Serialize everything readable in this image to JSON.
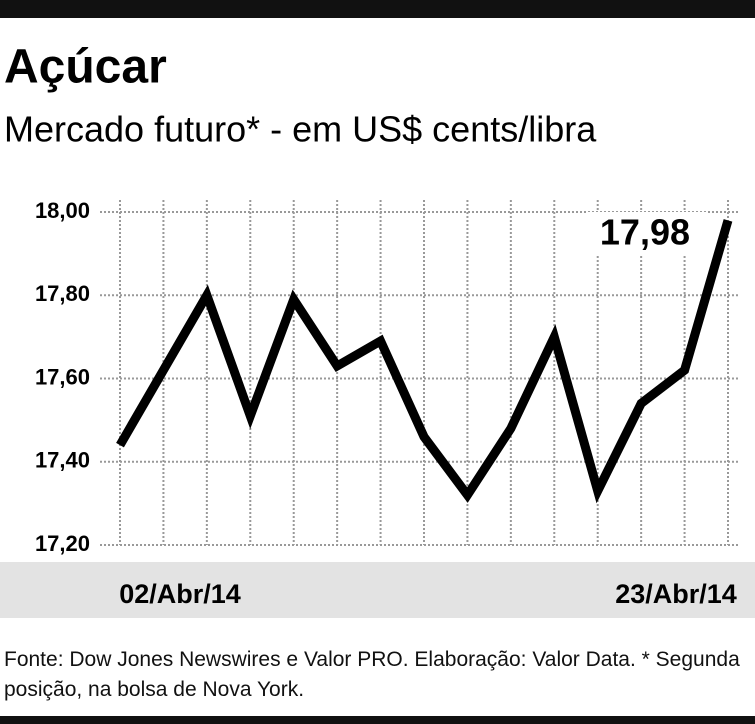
{
  "chart_data": {
    "type": "line",
    "title": "Açúcar",
    "subtitle": "Mercado futuro* - em US$ cents/libra",
    "categories": [
      "02/Abr/14",
      null,
      null,
      null,
      null,
      null,
      null,
      null,
      null,
      null,
      null,
      null,
      null,
      null,
      "23/Abr/14"
    ],
    "values": [
      17.44,
      17.62,
      17.8,
      17.51,
      17.79,
      17.63,
      17.69,
      17.46,
      17.32,
      17.48,
      17.7,
      17.33,
      17.54,
      17.62,
      17.98
    ],
    "value_labels": [
      null,
      null,
      null,
      null,
      null,
      null,
      null,
      null,
      null,
      null,
      null,
      null,
      null,
      null,
      "17,98"
    ],
    "color": "#000000",
    "ylim": [
      17.2,
      18.0
    ],
    "yticks": [
      {
        "value": 17.2,
        "label": "17,20"
      },
      {
        "value": 17.4,
        "label": "17,40"
      },
      {
        "value": 17.6,
        "label": "17,60"
      },
      {
        "value": 17.8,
        "label": "17,80"
      },
      {
        "value": 18.0,
        "label": "18,00"
      }
    ],
    "grid": true,
    "source": "Fonte: Dow Jones Newswires e Valor PRO. Elaboração: Valor Data. * Segunda posição, na bolsa de Nova York."
  }
}
